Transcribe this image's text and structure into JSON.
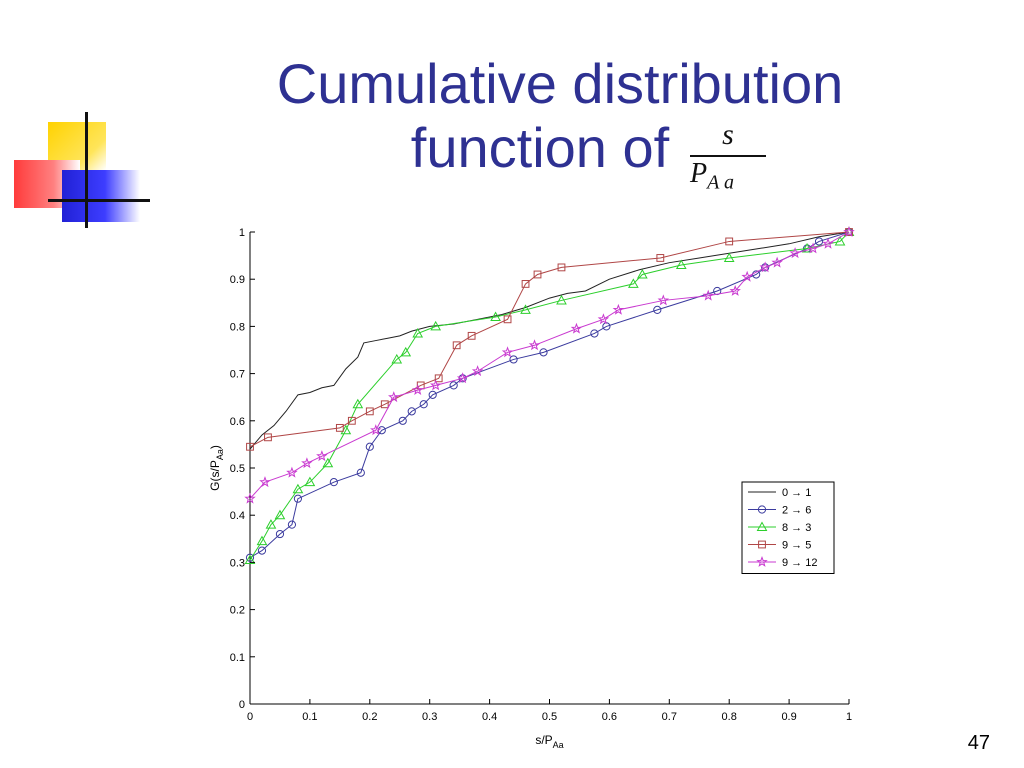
{
  "slide": {
    "title_line1": "Cumulative distribution",
    "title_line2": "function of",
    "formula_numerator": "s",
    "formula_denominator_base": "P",
    "formula_denominator_sub": "A a",
    "page_number": "47",
    "title_color": "#2e3192"
  },
  "chart_data": {
    "type": "line",
    "xlabel": "s/P",
    "xlabel_sub": "Aa",
    "ylabel": "G(s/P",
    "ylabel_sub": "Aa",
    "ylabel_close": ")",
    "xlim": [
      0,
      1
    ],
    "ylim": [
      0,
      1
    ],
    "xticks": [
      "0",
      "0.1",
      "0.2",
      "0.3",
      "0.4",
      "0.5",
      "0.6",
      "0.7",
      "0.8",
      "0.9",
      "1"
    ],
    "yticks": [
      "0",
      "0.1",
      "0.2",
      "0.3",
      "0.4",
      "0.5",
      "0.6",
      "0.7",
      "0.8",
      "0.9",
      "1"
    ],
    "grid": false,
    "legend_position": "right",
    "arrow": "→",
    "series": [
      {
        "name": "0 → 1",
        "from": "0",
        "to": "1",
        "color": "#222222",
        "marker": "none",
        "x": [
          0,
          0.02,
          0.04,
          0.06,
          0.08,
          0.1,
          0.12,
          0.14,
          0.16,
          0.18,
          0.19,
          0.21,
          0.23,
          0.25,
          0.27,
          0.3,
          0.34,
          0.38,
          0.42,
          0.46,
          0.5,
          0.53,
          0.56,
          0.6,
          0.65,
          0.7,
          0.75,
          0.8,
          0.85,
          0.9,
          0.95,
          1.0
        ],
        "y": [
          0.54,
          0.57,
          0.59,
          0.62,
          0.655,
          0.66,
          0.67,
          0.675,
          0.71,
          0.735,
          0.765,
          0.77,
          0.775,
          0.78,
          0.79,
          0.8,
          0.805,
          0.815,
          0.825,
          0.84,
          0.86,
          0.87,
          0.875,
          0.9,
          0.92,
          0.935,
          0.945,
          0.955,
          0.965,
          0.975,
          0.99,
          1.0
        ]
      },
      {
        "name": "2 → 6",
        "from": "2",
        "to": "6",
        "color": "#3b3b9e",
        "marker": "circle",
        "x": [
          0,
          0.02,
          0.05,
          0.07,
          0.08,
          0.14,
          0.185,
          0.2,
          0.22,
          0.255,
          0.27,
          0.29,
          0.305,
          0.34,
          0.355,
          0.44,
          0.49,
          0.575,
          0.595,
          0.68,
          0.78,
          0.845,
          0.86,
          0.93,
          0.95,
          1.0
        ],
        "y": [
          0.31,
          0.325,
          0.36,
          0.38,
          0.435,
          0.47,
          0.49,
          0.545,
          0.58,
          0.6,
          0.62,
          0.635,
          0.655,
          0.675,
          0.69,
          0.73,
          0.745,
          0.785,
          0.8,
          0.835,
          0.875,
          0.91,
          0.925,
          0.965,
          0.98,
          1.0
        ]
      },
      {
        "name": "8 → 3",
        "from": "8",
        "to": "3",
        "color": "#2ccf2c",
        "marker": "triangle",
        "x": [
          0,
          0.02,
          0.035,
          0.05,
          0.08,
          0.1,
          0.13,
          0.16,
          0.18,
          0.245,
          0.26,
          0.28,
          0.31,
          0.41,
          0.46,
          0.52,
          0.64,
          0.655,
          0.72,
          0.8,
          0.93,
          0.985,
          1.0
        ],
        "y": [
          0.305,
          0.345,
          0.38,
          0.4,
          0.455,
          0.47,
          0.51,
          0.58,
          0.635,
          0.73,
          0.745,
          0.785,
          0.8,
          0.82,
          0.835,
          0.855,
          0.89,
          0.91,
          0.93,
          0.945,
          0.965,
          0.98,
          1.0
        ]
      },
      {
        "name": "9 → 5",
        "from": "9",
        "to": "5",
        "color": "#b04646",
        "marker": "square",
        "x": [
          0,
          0.03,
          0.15,
          0.17,
          0.2,
          0.225,
          0.285,
          0.315,
          0.345,
          0.37,
          0.43,
          0.46,
          0.48,
          0.52,
          0.685,
          0.8,
          1.0
        ],
        "y": [
          0.545,
          0.565,
          0.585,
          0.6,
          0.62,
          0.635,
          0.675,
          0.69,
          0.76,
          0.78,
          0.815,
          0.89,
          0.91,
          0.925,
          0.945,
          0.98,
          1.0
        ]
      },
      {
        "name": "9 → 12",
        "from": "9",
        "to": "12",
        "color": "#c93ad0",
        "marker": "star",
        "x": [
          0,
          0.025,
          0.07,
          0.095,
          0.12,
          0.21,
          0.24,
          0.28,
          0.31,
          0.355,
          0.38,
          0.43,
          0.475,
          0.545,
          0.59,
          0.615,
          0.69,
          0.765,
          0.81,
          0.83,
          0.86,
          0.88,
          0.91,
          0.94,
          0.965,
          1.0
        ],
        "y": [
          0.435,
          0.47,
          0.49,
          0.51,
          0.525,
          0.58,
          0.65,
          0.665,
          0.675,
          0.69,
          0.705,
          0.745,
          0.76,
          0.795,
          0.815,
          0.835,
          0.855,
          0.865,
          0.875,
          0.905,
          0.925,
          0.935,
          0.955,
          0.965,
          0.975,
          1.0
        ]
      }
    ]
  }
}
